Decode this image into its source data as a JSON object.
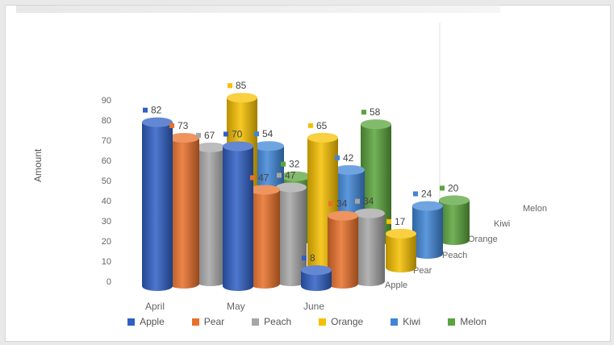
{
  "chart_data": {
    "type": "bar",
    "title": "",
    "ylabel": "Amount",
    "ylim": [
      0,
      90
    ],
    "yticks": [
      0,
      10,
      20,
      30,
      40,
      50,
      60,
      70,
      80,
      90
    ],
    "categories": [
      "April",
      "May",
      "June"
    ],
    "depth_labels": [
      "Apple",
      "Pear",
      "Peach",
      "Orange",
      "Kiwi",
      "Melon"
    ],
    "series": [
      {
        "name": "Apple",
        "color": "#2f5fc4",
        "values": [
          82,
          70,
          8
        ]
      },
      {
        "name": "Pear",
        "color": "#e8702a",
        "values": [
          73,
          47,
          34
        ]
      },
      {
        "name": "Peach",
        "color": "#a6a6a6",
        "values": [
          67,
          47,
          34
        ]
      },
      {
        "name": "Orange",
        "color": "#f6c000",
        "values": [
          85,
          65,
          17
        ]
      },
      {
        "name": "Kiwi",
        "color": "#3f86d6",
        "values": [
          54,
          42,
          24
        ]
      },
      {
        "name": "Melon",
        "color": "#5aa43c",
        "values": [
          32,
          58,
          20
        ]
      }
    ],
    "legend_position": "bottom",
    "grid": false
  }
}
